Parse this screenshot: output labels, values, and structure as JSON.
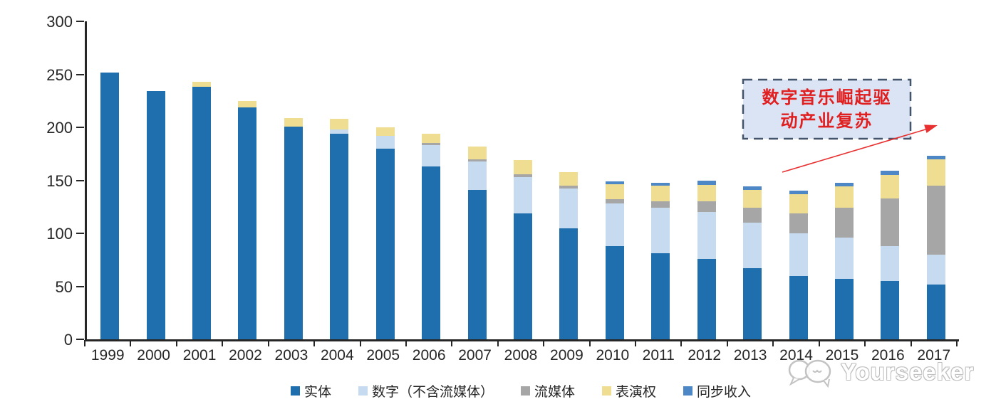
{
  "chart_data": {
    "type": "bar",
    "subtype": "stacked-vertical",
    "title": "",
    "xlabel": "",
    "ylabel": "",
    "ylim": [
      0,
      300
    ],
    "yticks": [
      0,
      50,
      100,
      150,
      200,
      250,
      300
    ],
    "grid": false,
    "legend_position": "bottom",
    "categories": [
      "1999",
      "2000",
      "2001",
      "2002",
      "2003",
      "2004",
      "2005",
      "2006",
      "2007",
      "2008",
      "2009",
      "2010",
      "2011",
      "2012",
      "2013",
      "2014",
      "2015",
      "2016",
      "2017"
    ],
    "series": [
      {
        "name": "实体",
        "color": "#1F6EAD",
        "values": [
          252,
          234,
          238,
          219,
          201,
          194,
          180,
          163,
          141,
          119,
          105,
          88,
          81,
          76,
          67,
          60,
          57,
          55,
          52
        ]
      },
      {
        "name": "数字（不含流媒体）",
        "color": "#C6DAF0",
        "values": [
          0,
          0,
          0,
          0,
          0,
          4,
          12,
          20,
          27,
          34,
          37,
          40,
          43,
          44,
          43,
          40,
          39,
          33,
          28
        ]
      },
      {
        "name": "流媒体",
        "color": "#A6A6A6",
        "values": [
          0,
          0,
          0,
          0,
          0,
          0,
          0,
          2,
          2,
          3,
          3,
          4,
          6,
          10,
          14,
          19,
          28,
          45,
          65
        ]
      },
      {
        "name": "表演权",
        "color": "#EFDD92",
        "values": [
          0,
          0,
          5,
          6,
          8,
          10,
          8,
          9,
          12,
          13,
          13,
          14,
          15,
          16,
          17,
          18,
          20,
          22,
          25
        ]
      },
      {
        "name": "同步收入",
        "color": "#4E87C6",
        "values": [
          0,
          0,
          0,
          0,
          0,
          0,
          0,
          0,
          0,
          0,
          0,
          3,
          3,
          4,
          3,
          3,
          4,
          4,
          3
        ]
      }
    ]
  },
  "annotation": {
    "line1": "数字音乐崛起驱",
    "line2": "动产业复苏",
    "text_color": "#E02020",
    "border_color": "#44546A",
    "fill_color": "#D9E3F3",
    "arrow_color": "#E83030"
  },
  "axis": {
    "color": "#262626"
  },
  "watermark": {
    "text": "Yourseeker",
    "color": "#BFBFBF"
  }
}
